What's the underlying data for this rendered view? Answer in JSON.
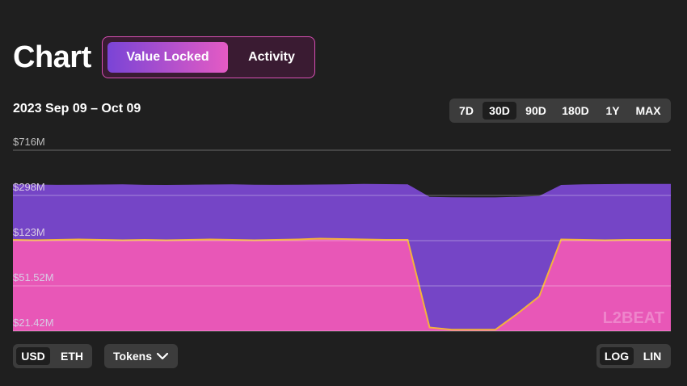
{
  "header": {
    "title": "Chart",
    "tabs": [
      {
        "label": "Value Locked",
        "active": true
      },
      {
        "label": "Activity",
        "active": false
      }
    ]
  },
  "range_label": "2023 Sep 09 – Oct 09",
  "periods": [
    {
      "label": "7D",
      "active": false
    },
    {
      "label": "30D",
      "active": true
    },
    {
      "label": "90D",
      "active": false
    },
    {
      "label": "180D",
      "active": false
    },
    {
      "label": "1Y",
      "active": false
    },
    {
      "label": "MAX",
      "active": false
    }
  ],
  "currency": [
    {
      "label": "USD",
      "active": true
    },
    {
      "label": "ETH",
      "active": false
    }
  ],
  "tokens_label": "Tokens",
  "scale": [
    {
      "label": "LOG",
      "active": true
    },
    {
      "label": "LIN",
      "active": false
    }
  ],
  "watermark": "L2BEAT",
  "colors": {
    "accent_purple": "#7a44d6",
    "accent_pink": "#e45bc4",
    "area_total": "#7545c6",
    "area_lower": "#e857b7",
    "line_lower": "#f4b33a"
  },
  "chart_data": {
    "type": "area",
    "scale": "log",
    "y_ticks": [
      "$716M",
      "$298M",
      "$123M",
      "$51.52M",
      "$21.42M"
    ],
    "y_tick_values": [
      716,
      298,
      123,
      51.52,
      21.42
    ],
    "ylim": [
      21.42,
      716
    ],
    "x": [
      "2023-09-09",
      "2023-09-10",
      "2023-09-11",
      "2023-09-12",
      "2023-09-13",
      "2023-09-14",
      "2023-09-15",
      "2023-09-16",
      "2023-09-17",
      "2023-09-18",
      "2023-09-19",
      "2023-09-20",
      "2023-09-21",
      "2023-09-22",
      "2023-09-23",
      "2023-09-24",
      "2023-09-25",
      "2023-09-26",
      "2023-09-27",
      "2023-09-28",
      "2023-09-29",
      "2023-09-30",
      "2023-10-01",
      "2023-10-02",
      "2023-10-03",
      "2023-10-04",
      "2023-10-05",
      "2023-10-06",
      "2023-10-07",
      "2023-10-08",
      "2023-10-09"
    ],
    "series": [
      {
        "values": [
          370,
          368,
          366,
          367,
          368,
          369,
          366,
          365,
          367,
          368,
          369,
          367,
          366,
          367,
          368,
          370,
          372,
          371,
          370,
          290,
          288,
          287,
          287,
          290,
          295,
          365,
          370,
          371,
          372,
          373,
          372
        ]
      },
      {
        "values": [
          125,
          124,
          125,
          126,
          125,
          124,
          125,
          124,
          125,
          126,
          125,
          124,
          125,
          126,
          128,
          127,
          126,
          125,
          125,
          23,
          22,
          22,
          22,
          30,
          42,
          126,
          125,
          124,
          125,
          125,
          125
        ]
      }
    ],
    "grid": true
  }
}
